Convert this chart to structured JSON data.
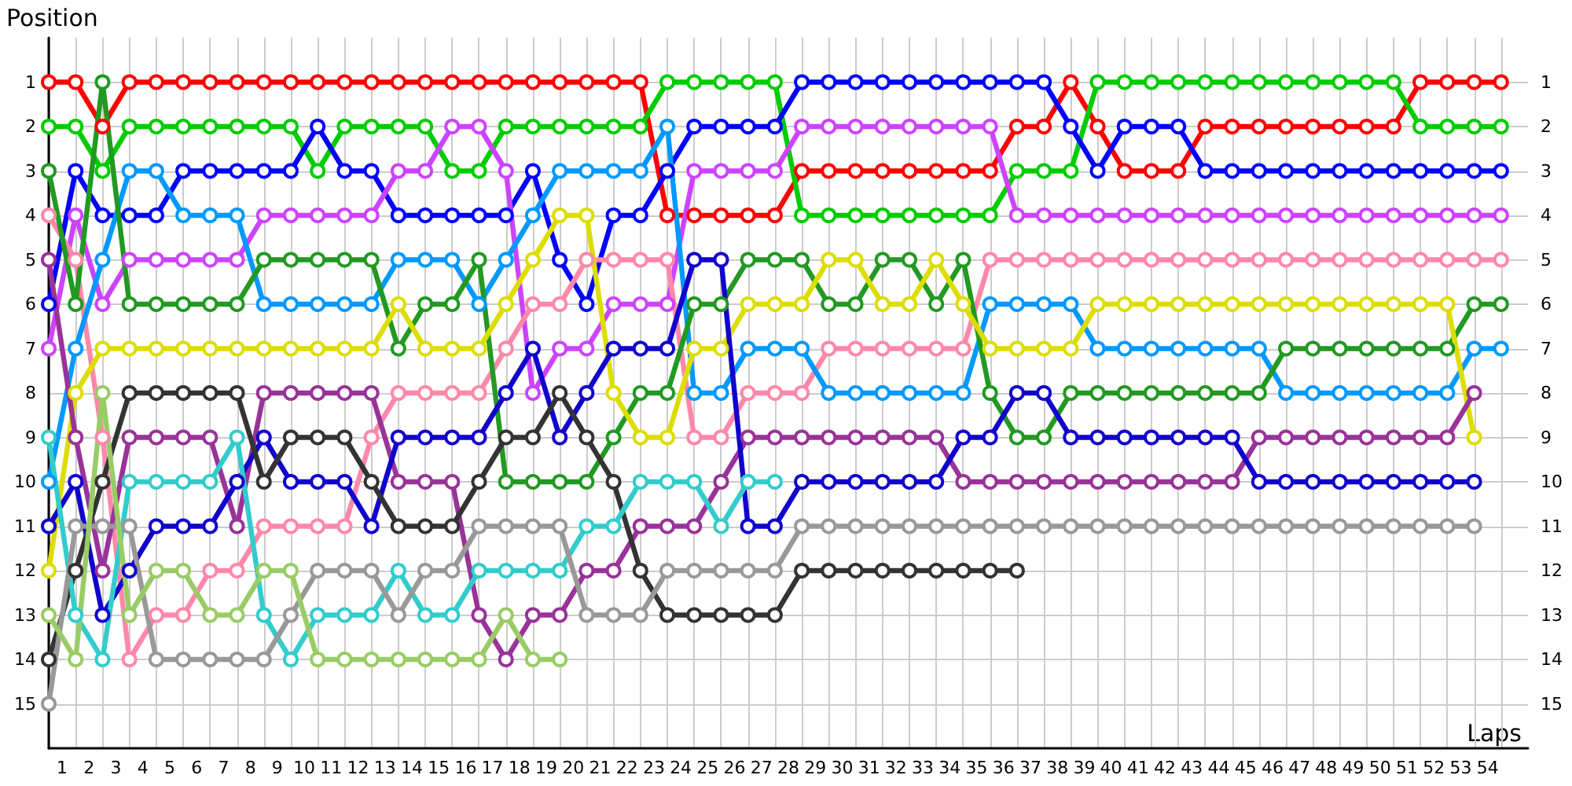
{
  "chart_data": {
    "type": "line",
    "xlabel": "Laps",
    "ylabel": "Position",
    "marker": "circle",
    "line_style": "solid",
    "grid": true,
    "x": [
      0,
      1,
      2,
      3,
      4,
      5,
      6,
      7,
      8,
      9,
      10,
      11,
      12,
      13,
      14,
      15,
      16,
      17,
      18,
      19,
      20,
      21,
      22,
      23,
      24,
      25,
      26,
      27,
      28,
      29,
      30,
      31,
      32,
      33,
      34,
      35,
      36,
      37,
      38,
      39,
      40,
      41,
      42,
      43,
      44,
      45,
      46,
      47,
      48,
      49,
      50,
      51,
      52,
      53,
      54
    ],
    "xlim": [
      0,
      55
    ],
    "xticks": [
      {
        "value": 0.5,
        "label": "1"
      },
      {
        "value": 1.5,
        "label": "2"
      },
      {
        "value": 2.5,
        "label": "3"
      },
      {
        "value": 3.5,
        "label": "4"
      },
      {
        "value": 4.5,
        "label": "5"
      },
      {
        "value": 5.5,
        "label": "6"
      },
      {
        "value": 6.5,
        "label": "7"
      },
      {
        "value": 7.5,
        "label": "8"
      },
      {
        "value": 8.5,
        "label": "9"
      },
      {
        "value": 9.5,
        "label": "10"
      },
      {
        "value": 10.5,
        "label": "11"
      },
      {
        "value": 11.5,
        "label": "12"
      },
      {
        "value": 12.5,
        "label": "13"
      },
      {
        "value": 13.5,
        "label": "14"
      },
      {
        "value": 14.5,
        "label": "15"
      },
      {
        "value": 15.5,
        "label": "16"
      },
      {
        "value": 16.5,
        "label": "17"
      },
      {
        "value": 17.5,
        "label": "18"
      },
      {
        "value": 18.5,
        "label": "19"
      },
      {
        "value": 19.5,
        "label": "20"
      },
      {
        "value": 20.5,
        "label": "21"
      },
      {
        "value": 21.5,
        "label": "22"
      },
      {
        "value": 22.5,
        "label": "23"
      },
      {
        "value": 23.5,
        "label": "24"
      },
      {
        "value": 24.5,
        "label": "25"
      },
      {
        "value": 25.5,
        "label": "26"
      },
      {
        "value": 26.5,
        "label": "27"
      },
      {
        "value": 27.5,
        "label": "28"
      },
      {
        "value": 28.5,
        "label": "29"
      },
      {
        "value": 29.5,
        "label": "30"
      },
      {
        "value": 30.5,
        "label": "31"
      },
      {
        "value": 31.5,
        "label": "32"
      },
      {
        "value": 32.5,
        "label": "33"
      },
      {
        "value": 33.5,
        "label": "34"
      },
      {
        "value": 34.5,
        "label": "35"
      },
      {
        "value": 35.5,
        "label": "36"
      },
      {
        "value": 36.5,
        "label": "37"
      },
      {
        "value": 37.5,
        "label": "38"
      },
      {
        "value": 38.5,
        "label": "39"
      },
      {
        "value": 39.5,
        "label": "40"
      },
      {
        "value": 40.5,
        "label": "41"
      },
      {
        "value": 41.5,
        "label": "42"
      },
      {
        "value": 42.5,
        "label": "43"
      },
      {
        "value": 43.5,
        "label": "44"
      },
      {
        "value": 44.5,
        "label": "45"
      },
      {
        "value": 45.5,
        "label": "46"
      },
      {
        "value": 46.5,
        "label": "47"
      },
      {
        "value": 47.5,
        "label": "48"
      },
      {
        "value": 48.5,
        "label": "49"
      },
      {
        "value": 49.5,
        "label": "50"
      },
      {
        "value": 50.5,
        "label": "51"
      },
      {
        "value": 51.5,
        "label": "52"
      },
      {
        "value": 52.5,
        "label": "53"
      },
      {
        "value": 53.5,
        "label": "54"
      }
    ],
    "ylim": [
      16,
      0
    ],
    "yticks": [
      1,
      2,
      3,
      4,
      5,
      6,
      7,
      8,
      9,
      10,
      11,
      12,
      13,
      14,
      15
    ],
    "y2lim": [
      16,
      0
    ],
    "y2ticks": [
      1,
      2,
      3,
      4,
      5,
      6,
      7,
      8,
      9,
      10,
      11,
      12,
      13,
      14,
      15
    ],
    "series": [
      {
        "color": "#ff0000",
        "values": [
          1,
          1,
          2,
          1,
          1,
          1,
          1,
          1,
          1,
          1,
          1,
          1,
          1,
          1,
          1,
          1,
          1,
          1,
          1,
          1,
          1,
          1,
          1,
          4,
          4,
          4,
          4,
          4,
          3,
          3,
          3,
          3,
          3,
          3,
          3,
          3,
          2,
          2,
          1,
          2,
          3,
          3,
          3,
          2,
          2,
          2,
          2,
          2,
          2,
          2,
          2,
          1,
          1,
          1,
          1
        ]
      },
      {
        "color": "#00cc00",
        "values": [
          2,
          2,
          3,
          2,
          2,
          2,
          2,
          2,
          2,
          2,
          3,
          2,
          2,
          2,
          2,
          3,
          3,
          2,
          2,
          2,
          2,
          2,
          2,
          1,
          1,
          1,
          1,
          1,
          4,
          4,
          4,
          4,
          4,
          4,
          4,
          4,
          3,
          3,
          3,
          1,
          1,
          1,
          1,
          1,
          1,
          1,
          1,
          1,
          1,
          1,
          1,
          2,
          2,
          2,
          2
        ]
      },
      {
        "color": "#0000ff",
        "values": [
          6,
          3,
          4,
          4,
          4,
          3,
          3,
          3,
          3,
          3,
          2,
          3,
          3,
          4,
          4,
          4,
          4,
          4,
          3,
          5,
          6,
          4,
          4,
          3,
          2,
          2,
          2,
          2,
          1,
          1,
          1,
          1,
          1,
          1,
          1,
          1,
          1,
          1,
          2,
          3,
          2,
          2,
          2,
          3,
          3,
          3,
          3,
          3,
          3,
          3,
          3,
          3,
          3,
          3,
          3
        ]
      },
      {
        "color": "#cc44ff",
        "values": [
          7,
          4,
          6,
          5,
          5,
          5,
          5,
          5,
          4,
          4,
          4,
          4,
          4,
          3,
          3,
          2,
          2,
          3,
          8,
          7,
          7,
          6,
          6,
          6,
          3,
          3,
          3,
          3,
          2,
          2,
          2,
          2,
          2,
          2,
          2,
          2,
          4,
          4,
          4,
          4,
          4,
          4,
          4,
          4,
          4,
          4,
          4,
          4,
          4,
          4,
          4,
          4,
          4,
          4,
          4
        ]
      },
      {
        "color": "#ff88aa",
        "values": [
          4,
          5,
          9,
          14,
          13,
          13,
          12,
          12,
          11,
          11,
          11,
          11,
          9,
          8,
          8,
          8,
          8,
          7,
          6,
          6,
          5,
          5,
          5,
          5,
          9,
          9,
          8,
          8,
          8,
          7,
          7,
          7,
          7,
          7,
          7,
          5,
          5,
          5,
          5,
          5,
          5,
          5,
          5,
          5,
          5,
          5,
          5,
          5,
          5,
          5,
          5,
          5,
          5,
          5,
          5
        ]
      },
      {
        "color": "#0099ff",
        "values": [
          10,
          7,
          5,
          3,
          3,
          4,
          4,
          4,
          6,
          6,
          6,
          6,
          6,
          5,
          5,
          5,
          6,
          5,
          4,
          3,
          3,
          3,
          3,
          2,
          8,
          8,
          7,
          7,
          7,
          8,
          8,
          8,
          8,
          8,
          8,
          6,
          6,
          6,
          6,
          7,
          7,
          7,
          7,
          7,
          7,
          7,
          8,
          8,
          8,
          8,
          8,
          8,
          8,
          7,
          7
        ]
      },
      {
        "color": "#229922",
        "values": [
          3,
          6,
          1,
          6,
          6,
          6,
          6,
          6,
          5,
          5,
          5,
          5,
          5,
          7,
          6,
          6,
          5,
          10,
          10,
          10,
          10,
          9,
          8,
          8,
          6,
          6,
          5,
          5,
          5,
          6,
          6,
          5,
          5,
          6,
          5,
          8,
          9,
          9,
          8,
          8,
          8,
          8,
          8,
          8,
          8,
          8,
          7,
          7,
          7,
          7,
          7,
          7,
          7,
          6,
          6
        ]
      },
      {
        "color": "#dddd00",
        "values": [
          12,
          8,
          7,
          7,
          7,
          7,
          7,
          7,
          7,
          7,
          7,
          7,
          7,
          6,
          7,
          7,
          7,
          6,
          5,
          4,
          4,
          8,
          9,
          9,
          7,
          7,
          6,
          6,
          6,
          5,
          5,
          6,
          6,
          5,
          6,
          7,
          7,
          7,
          7,
          6,
          6,
          6,
          6,
          6,
          6,
          6,
          6,
          6,
          6,
          6,
          6,
          6,
          6,
          9,
          null
        ]
      },
      {
        "color": "#993399",
        "values": [
          5,
          9,
          12,
          9,
          9,
          9,
          9,
          11,
          8,
          8,
          8,
          8,
          8,
          10,
          10,
          10,
          13,
          14,
          13,
          13,
          12,
          12,
          11,
          11,
          11,
          10,
          9,
          9,
          9,
          9,
          9,
          9,
          9,
          9,
          10,
          10,
          10,
          10,
          10,
          10,
          10,
          10,
          10,
          10,
          10,
          9,
          9,
          9,
          9,
          9,
          9,
          9,
          9,
          8,
          null
        ]
      },
      {
        "color": "#1100cc",
        "values": [
          11,
          10,
          13,
          12,
          11,
          11,
          11,
          10,
          9,
          10,
          10,
          10,
          11,
          9,
          9,
          9,
          9,
          8,
          7,
          9,
          8,
          7,
          7,
          7,
          5,
          5,
          11,
          11,
          10,
          10,
          10,
          10,
          10,
          10,
          9,
          9,
          8,
          8,
          9,
          9,
          9,
          9,
          9,
          9,
          9,
          10,
          10,
          10,
          10,
          10,
          10,
          10,
          10,
          10,
          null
        ]
      },
      {
        "color": "#333333",
        "values": [
          14,
          12,
          10,
          8,
          8,
          8,
          8,
          8,
          10,
          9,
          9,
          9,
          10,
          11,
          11,
          11,
          10,
          9,
          9,
          8,
          9,
          10,
          12,
          13,
          13,
          13,
          13,
          13,
          12,
          12,
          12,
          12,
          12,
          12,
          12,
          12,
          12,
          null,
          null,
          null,
          null,
          null,
          null,
          null,
          null,
          null,
          null,
          null,
          null,
          null,
          null,
          null,
          null,
          null,
          null
        ]
      },
      {
        "color": "#33cccc",
        "values": [
          9,
          13,
          14,
          10,
          10,
          10,
          10,
          9,
          13,
          14,
          13,
          13,
          13,
          12,
          13,
          13,
          12,
          12,
          12,
          12,
          11,
          11,
          10,
          10,
          10,
          11,
          10,
          10,
          null,
          null,
          null,
          null,
          null,
          null,
          null,
          null,
          null,
          null,
          null,
          null,
          null,
          null,
          null,
          null,
          null,
          null,
          null,
          null,
          null,
          null,
          null,
          null,
          null,
          null,
          null
        ]
      },
      {
        "color": "#999999",
        "values": [
          15,
          11,
          11,
          11,
          14,
          14,
          14,
          14,
          14,
          13,
          12,
          12,
          12,
          13,
          12,
          12,
          11,
          11,
          11,
          11,
          13,
          13,
          13,
          12,
          12,
          12,
          12,
          12,
          11,
          11,
          11,
          11,
          11,
          11,
          11,
          11,
          11,
          11,
          11,
          11,
          11,
          11,
          11,
          11,
          11,
          11,
          11,
          11,
          11,
          11,
          11,
          11,
          11,
          11,
          null
        ]
      },
      {
        "color": "#99cc66",
        "values": [
          13,
          14,
          8,
          13,
          12,
          12,
          13,
          13,
          12,
          12,
          14,
          14,
          14,
          14,
          14,
          14,
          14,
          13,
          14,
          14,
          null,
          null,
          null,
          null,
          null,
          null,
          null,
          null,
          null,
          null,
          null,
          null,
          null,
          null,
          null,
          null,
          null,
          null,
          null,
          null,
          null,
          null,
          null,
          null,
          null,
          null,
          null,
          null,
          null,
          null,
          null,
          null,
          null,
          null,
          null
        ]
      }
    ]
  }
}
